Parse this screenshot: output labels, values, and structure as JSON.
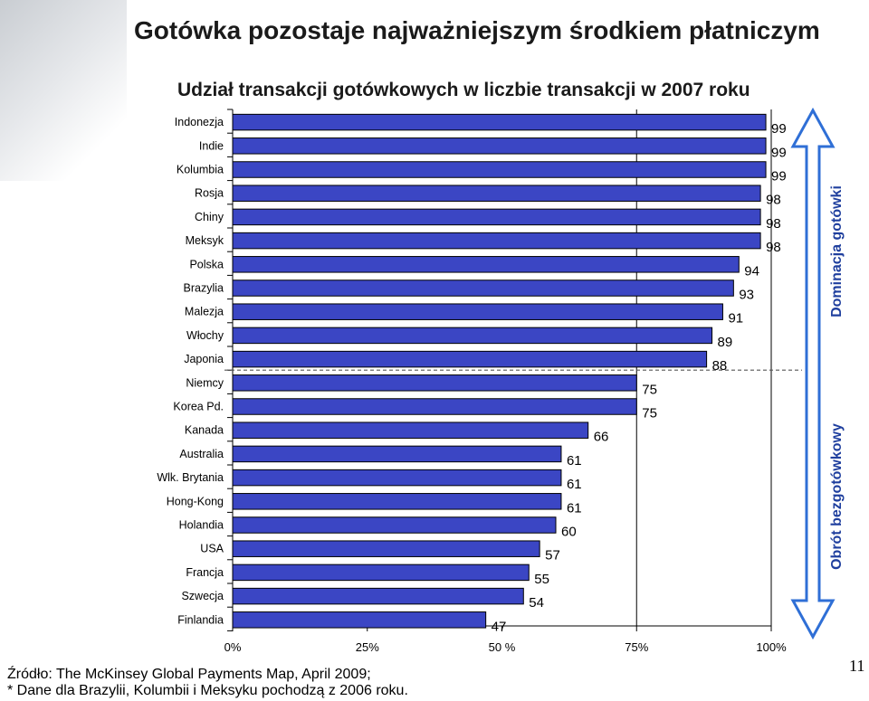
{
  "page": {
    "title": "Gotówka pozostaje najważniejszym środkiem płatniczym",
    "page_number": "11",
    "source_line1": "Źródło: The McKinsey Global Payments Map, April 2009;",
    "source_line2": "* Dane dla Brazylii, Kolumbii i Meksyku pochodzą z 2006 roku."
  },
  "side_labels": {
    "top": "Dominacja gotówki",
    "bottom": "Obrót bezgotówkowy"
  },
  "chart_data": {
    "type": "bar",
    "orientation": "horizontal",
    "title": "Udział transakcji gotówkowych w liczbie transakcji w 2007 roku",
    "categories": [
      "Indonezja",
      "Indie",
      "Kolumbia",
      "Rosja",
      "Chiny",
      "Meksyk",
      "Polska",
      "Brazylia",
      "Malezja",
      "Włochy",
      "Japonia",
      "Niemcy",
      "Korea Pd.",
      "Kanada",
      "Australia",
      "Wlk. Brytania",
      "Hong-Kong",
      "Holandia",
      "USA",
      "Francja",
      "Szwecja",
      "Finlandia"
    ],
    "values": [
      99,
      99,
      99,
      98,
      98,
      98,
      94,
      93,
      91,
      89,
      88,
      75,
      75,
      66,
      61,
      61,
      61,
      60,
      57,
      55,
      54,
      47
    ],
    "xlim": [
      0,
      100
    ],
    "x_ticks": [
      "0%",
      "25%",
      "50 %",
      "75%",
      "100%"
    ],
    "bar_color": "#3b46c4",
    "grid": false,
    "divider_after_index": 10,
    "arrow_color": "#2f6fd6",
    "label_color": "#1f3f9e"
  }
}
